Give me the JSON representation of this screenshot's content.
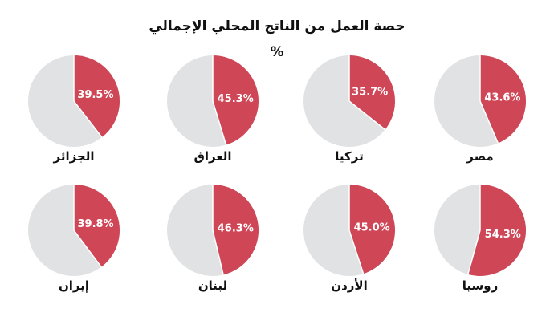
{
  "chart_data": {
    "type": "pie",
    "title": "حصة العمل من الناتج المحلي الإجمالي",
    "unit": "%",
    "colors": {
      "share": "#cf4656",
      "rest": "#e1e2e4",
      "divider": "#ffffff"
    },
    "charts": [
      {
        "name": "مصر",
        "value": 43.6,
        "label": "43.6%"
      },
      {
        "name": "تركيا",
        "value": 35.7,
        "label": "35.7%"
      },
      {
        "name": "العراق",
        "value": 45.3,
        "label": "45.3%"
      },
      {
        "name": "الجزائر",
        "value": 39.5,
        "label": "39.5%"
      },
      {
        "name": "روسيا",
        "value": 54.3,
        "label": "54.3%"
      },
      {
        "name": "الأردن",
        "value": 45.0,
        "label": "45.0%"
      },
      {
        "name": "لبنان",
        "value": 46.3,
        "label": "46.3%"
      },
      {
        "name": "إيران",
        "value": 39.8,
        "label": "39.8%"
      }
    ]
  }
}
